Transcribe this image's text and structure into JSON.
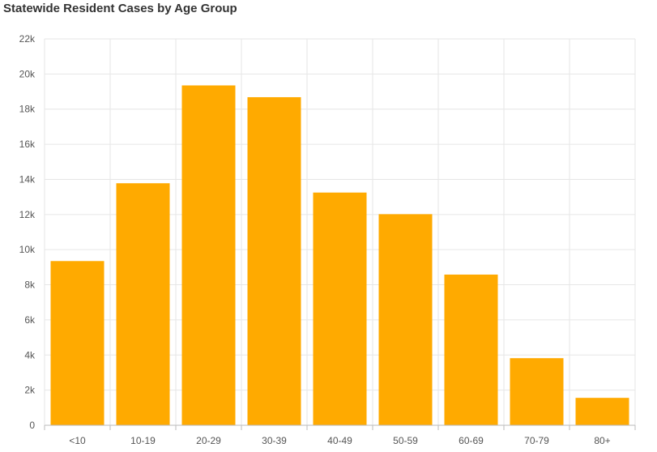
{
  "chart_data": {
    "type": "bar",
    "title": "Statewide Resident Cases by Age Group",
    "xlabel": "",
    "ylabel": "",
    "categories": [
      "<10",
      "10-19",
      "20-29",
      "30-39",
      "40-49",
      "50-59",
      "60-69",
      "70-79",
      "80+"
    ],
    "values": [
      9350,
      13780,
      19350,
      18680,
      13250,
      12020,
      8580,
      3820,
      1560
    ],
    "ylim": [
      0,
      22000
    ],
    "y_ticks": [
      0,
      2000,
      4000,
      6000,
      8000,
      10000,
      12000,
      14000,
      16000,
      18000,
      20000,
      22000
    ],
    "y_tick_labels": [
      "0",
      "2k",
      "4k",
      "6k",
      "8k",
      "10k",
      "12k",
      "14k",
      "16k",
      "18k",
      "20k",
      "22k"
    ],
    "grid": true,
    "legend": "none",
    "bar_color": "#FFAA00",
    "grid_color": "#E6E6E6",
    "axis_color": "#BBBBBB"
  }
}
